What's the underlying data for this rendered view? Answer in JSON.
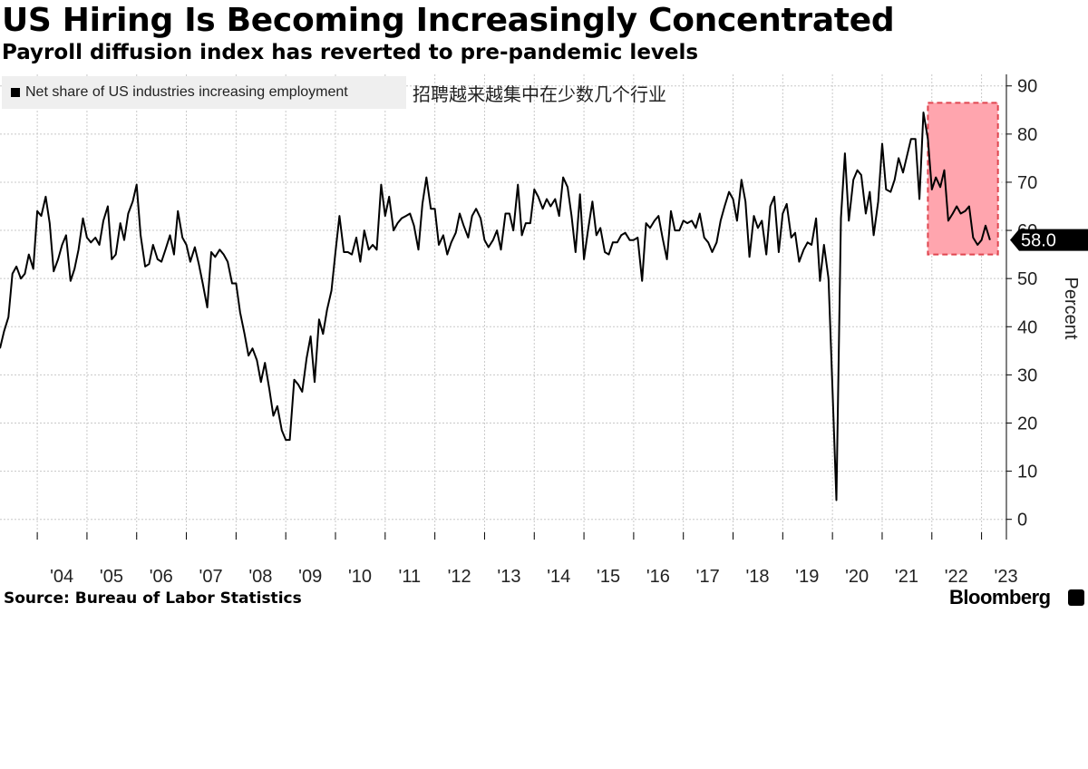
{
  "header": {
    "title": "US Hiring Is Becoming Increasingly Concentrated",
    "subtitle": "Payroll diffusion index has reverted to pre-pandemic levels"
  },
  "annotation": "招聘越来越集中在少数几个行业",
  "footer": {
    "source": "Source: Bureau of Labor Statistics",
    "brand": "Bloomberg"
  },
  "colors": {
    "line": "#000000",
    "highlight_fill": "#ffa5ae",
    "highlight_border": "#e0454f",
    "grid": "#c8c8c8",
    "legend_bg": "#efefef",
    "last_value_bg": "#000000"
  },
  "chart_data": {
    "type": "line",
    "title": "US Hiring Is Becoming Increasingly Concentrated",
    "subtitle": "Payroll diffusion index has reverted to pre-pandemic levels",
    "ylabel": "Percent",
    "ylim": [
      -4.2,
      92.4
    ],
    "yticks": [
      0,
      10,
      20,
      30,
      40,
      50,
      60,
      70,
      80,
      90
    ],
    "xlim": [
      2003.25,
      2023.5
    ],
    "xticks": [
      {
        "label": "'04",
        "x": 2004
      },
      {
        "label": "'05",
        "x": 2005
      },
      {
        "label": "'06",
        "x": 2006
      },
      {
        "label": "'07",
        "x": 2007
      },
      {
        "label": "'08",
        "x": 2008
      },
      {
        "label": "'09",
        "x": 2009
      },
      {
        "label": "'10",
        "x": 2010
      },
      {
        "label": "'11",
        "x": 2011
      },
      {
        "label": "'12",
        "x": 2012
      },
      {
        "label": "'13",
        "x": 2013
      },
      {
        "label": "'14",
        "x": 2014
      },
      {
        "label": "'15",
        "x": 2015
      },
      {
        "label": "'16",
        "x": 2016
      },
      {
        "label": "'17",
        "x": 2017
      },
      {
        "label": "'18",
        "x": 2018
      },
      {
        "label": "'19",
        "x": 2019
      },
      {
        "label": "'20",
        "x": 2020
      },
      {
        "label": "'21",
        "x": 2021
      },
      {
        "label": "'22",
        "x": 2022
      },
      {
        "label": "'23",
        "x": 2023
      }
    ],
    "grid": true,
    "legend": "top-left",
    "last_value_label": "58.0",
    "highlight_range": {
      "x": [
        2021.92,
        2023.33
      ],
      "y": [
        55.0,
        86.5
      ]
    },
    "series": [
      {
        "name": "Net share of US industries increasing employment",
        "values": [
          [
            2003.25,
            35.5
          ],
          [
            2003.33,
            39.0
          ],
          [
            2003.42,
            42.0
          ],
          [
            2003.5,
            51.0
          ],
          [
            2003.58,
            52.5
          ],
          [
            2003.67,
            50.0
          ],
          [
            2003.75,
            51.0
          ],
          [
            2003.83,
            55.0
          ],
          [
            2003.92,
            52.0
          ],
          [
            2004.0,
            64.0
          ],
          [
            2004.08,
            63.0
          ],
          [
            2004.17,
            67.0
          ],
          [
            2004.25,
            61.5
          ],
          [
            2004.33,
            51.5
          ],
          [
            2004.42,
            54.0
          ],
          [
            2004.5,
            57.0
          ],
          [
            2004.58,
            59.0
          ],
          [
            2004.67,
            49.5
          ],
          [
            2004.75,
            52.0
          ],
          [
            2004.83,
            56.0
          ],
          [
            2004.92,
            62.5
          ],
          [
            2005.0,
            58.5
          ],
          [
            2005.08,
            57.5
          ],
          [
            2005.17,
            58.5
          ],
          [
            2005.25,
            57.0
          ],
          [
            2005.33,
            62.0
          ],
          [
            2005.42,
            65.0
          ],
          [
            2005.5,
            54.0
          ],
          [
            2005.58,
            55.0
          ],
          [
            2005.67,
            61.5
          ],
          [
            2005.75,
            58.0
          ],
          [
            2005.83,
            63.5
          ],
          [
            2005.92,
            66.0
          ],
          [
            2006.0,
            69.5
          ],
          [
            2006.08,
            59.0
          ],
          [
            2006.17,
            52.5
          ],
          [
            2006.25,
            53.0
          ],
          [
            2006.33,
            57.0
          ],
          [
            2006.42,
            54.0
          ],
          [
            2006.5,
            53.5
          ],
          [
            2006.58,
            56.0
          ],
          [
            2006.67,
            59.0
          ],
          [
            2006.75,
            55.0
          ],
          [
            2006.83,
            64.0
          ],
          [
            2006.92,
            58.5
          ],
          [
            2007.0,
            57.0
          ],
          [
            2007.08,
            53.5
          ],
          [
            2007.17,
            56.5
          ],
          [
            2007.25,
            53.0
          ],
          [
            2007.33,
            49.0
          ],
          [
            2007.42,
            44.0
          ],
          [
            2007.5,
            55.5
          ],
          [
            2007.58,
            54.5
          ],
          [
            2007.67,
            56.0
          ],
          [
            2007.75,
            55.0
          ],
          [
            2007.83,
            53.5
          ],
          [
            2007.92,
            49.0
          ],
          [
            2008.0,
            49.0
          ],
          [
            2008.08,
            43.0
          ],
          [
            2008.17,
            38.5
          ],
          [
            2008.25,
            34.0
          ],
          [
            2008.33,
            35.5
          ],
          [
            2008.42,
            33.0
          ],
          [
            2008.5,
            28.5
          ],
          [
            2008.58,
            32.5
          ],
          [
            2008.67,
            27.0
          ],
          [
            2008.75,
            21.5
          ],
          [
            2008.83,
            23.5
          ],
          [
            2008.92,
            18.5
          ],
          [
            2009.0,
            16.5
          ],
          [
            2009.08,
            16.5
          ],
          [
            2009.17,
            29.0
          ],
          [
            2009.25,
            28.0
          ],
          [
            2009.33,
            26.5
          ],
          [
            2009.42,
            33.5
          ],
          [
            2009.5,
            38.0
          ],
          [
            2009.58,
            28.5
          ],
          [
            2009.67,
            41.5
          ],
          [
            2009.75,
            38.5
          ],
          [
            2009.83,
            43.5
          ],
          [
            2009.92,
            47.5
          ],
          [
            2010.0,
            55.5
          ],
          [
            2010.08,
            63.0
          ],
          [
            2010.17,
            55.5
          ],
          [
            2010.25,
            55.5
          ],
          [
            2010.33,
            55.0
          ],
          [
            2010.42,
            58.5
          ],
          [
            2010.5,
            53.5
          ],
          [
            2010.58,
            60.0
          ],
          [
            2010.67,
            56.0
          ],
          [
            2010.75,
            57.0
          ],
          [
            2010.83,
            56.0
          ],
          [
            2010.92,
            69.5
          ],
          [
            2011.0,
            63.0
          ],
          [
            2011.08,
            67.0
          ],
          [
            2011.17,
            60.0
          ],
          [
            2011.25,
            61.5
          ],
          [
            2011.33,
            62.5
          ],
          [
            2011.42,
            63.0
          ],
          [
            2011.5,
            63.5
          ],
          [
            2011.58,
            61.0
          ],
          [
            2011.67,
            56.0
          ],
          [
            2011.75,
            65.5
          ],
          [
            2011.83,
            71.0
          ],
          [
            2011.92,
            64.5
          ],
          [
            2012.0,
            64.5
          ],
          [
            2012.08,
            57.0
          ],
          [
            2012.17,
            59.0
          ],
          [
            2012.25,
            55.0
          ],
          [
            2012.33,
            57.5
          ],
          [
            2012.42,
            59.5
          ],
          [
            2012.5,
            63.5
          ],
          [
            2012.58,
            61.0
          ],
          [
            2012.67,
            58.5
          ],
          [
            2012.75,
            63.0
          ],
          [
            2012.83,
            64.5
          ],
          [
            2012.92,
            62.5
          ],
          [
            2013.0,
            58.0
          ],
          [
            2013.08,
            56.5
          ],
          [
            2013.17,
            58.0
          ],
          [
            2013.25,
            60.0
          ],
          [
            2013.33,
            56.0
          ],
          [
            2013.42,
            63.5
          ],
          [
            2013.5,
            63.5
          ],
          [
            2013.58,
            60.0
          ],
          [
            2013.67,
            69.5
          ],
          [
            2013.75,
            59.0
          ],
          [
            2013.83,
            61.5
          ],
          [
            2013.92,
            61.5
          ],
          [
            2014.0,
            68.5
          ],
          [
            2014.08,
            67.0
          ],
          [
            2014.17,
            64.5
          ],
          [
            2014.25,
            66.5
          ],
          [
            2014.33,
            65.0
          ],
          [
            2014.42,
            66.5
          ],
          [
            2014.5,
            63.0
          ],
          [
            2014.58,
            71.0
          ],
          [
            2014.67,
            69.0
          ],
          [
            2014.75,
            63.0
          ],
          [
            2014.83,
            55.5
          ],
          [
            2014.92,
            67.5
          ],
          [
            2015.0,
            54.0
          ],
          [
            2015.08,
            60.0
          ],
          [
            2015.17,
            66.0
          ],
          [
            2015.25,
            59.0
          ],
          [
            2015.33,
            60.5
          ],
          [
            2015.42,
            55.5
          ],
          [
            2015.5,
            55.0
          ],
          [
            2015.58,
            57.5
          ],
          [
            2015.67,
            57.5
          ],
          [
            2015.75,
            59.0
          ],
          [
            2015.83,
            59.5
          ],
          [
            2015.92,
            58.0
          ],
          [
            2016.0,
            58.0
          ],
          [
            2016.08,
            58.5
          ],
          [
            2016.17,
            49.5
          ],
          [
            2016.25,
            61.5
          ],
          [
            2016.33,
            60.5
          ],
          [
            2016.42,
            62.0
          ],
          [
            2016.5,
            63.0
          ],
          [
            2016.58,
            58.5
          ],
          [
            2016.67,
            54.0
          ],
          [
            2016.75,
            64.0
          ],
          [
            2016.83,
            60.0
          ],
          [
            2016.92,
            60.0
          ],
          [
            2017.0,
            62.0
          ],
          [
            2017.08,
            61.5
          ],
          [
            2017.17,
            62.0
          ],
          [
            2017.25,
            60.5
          ],
          [
            2017.33,
            63.5
          ],
          [
            2017.42,
            58.5
          ],
          [
            2017.5,
            57.5
          ],
          [
            2017.58,
            55.5
          ],
          [
            2017.67,
            57.5
          ],
          [
            2017.75,
            62.0
          ],
          [
            2017.83,
            65.0
          ],
          [
            2017.92,
            68.0
          ],
          [
            2018.0,
            66.5
          ],
          [
            2018.08,
            62.0
          ],
          [
            2018.17,
            70.5
          ],
          [
            2018.25,
            66.0
          ],
          [
            2018.33,
            54.5
          ],
          [
            2018.42,
            63.0
          ],
          [
            2018.5,
            60.5
          ],
          [
            2018.58,
            62.0
          ],
          [
            2018.67,
            55.0
          ],
          [
            2018.75,
            65.0
          ],
          [
            2018.83,
            67.0
          ],
          [
            2018.92,
            55.5
          ],
          [
            2019.0,
            63.5
          ],
          [
            2019.08,
            65.5
          ],
          [
            2019.17,
            58.5
          ],
          [
            2019.25,
            59.5
          ],
          [
            2019.33,
            53.5
          ],
          [
            2019.42,
            56.0
          ],
          [
            2019.5,
            57.5
          ],
          [
            2019.58,
            57.0
          ],
          [
            2019.67,
            62.5
          ],
          [
            2019.75,
            49.5
          ],
          [
            2019.83,
            57.0
          ],
          [
            2019.92,
            50.0
          ],
          [
            2020.0,
            27.5
          ],
          [
            2020.08,
            4.0
          ],
          [
            2020.17,
            62.5
          ],
          [
            2020.25,
            76.0
          ],
          [
            2020.33,
            62.0
          ],
          [
            2020.42,
            70.5
          ],
          [
            2020.5,
            72.5
          ],
          [
            2020.58,
            71.5
          ],
          [
            2020.67,
            63.5
          ],
          [
            2020.75,
            68.0
          ],
          [
            2020.83,
            59.0
          ],
          [
            2020.92,
            66.0
          ],
          [
            2021.0,
            78.0
          ],
          [
            2021.08,
            68.5
          ],
          [
            2021.17,
            68.0
          ],
          [
            2021.25,
            70.5
          ],
          [
            2021.33,
            75.0
          ],
          [
            2021.42,
            72.0
          ],
          [
            2021.5,
            75.5
          ],
          [
            2021.58,
            79.0
          ],
          [
            2021.67,
            79.0
          ],
          [
            2021.75,
            66.5
          ],
          [
            2021.83,
            84.5
          ],
          [
            2021.92,
            79.0
          ],
          [
            2022.0,
            68.5
          ],
          [
            2022.08,
            71.0
          ],
          [
            2022.17,
            69.0
          ],
          [
            2022.25,
            72.5
          ],
          [
            2022.33,
            62.0
          ],
          [
            2022.42,
            63.5
          ],
          [
            2022.5,
            65.0
          ],
          [
            2022.58,
            63.5
          ],
          [
            2022.67,
            64.0
          ],
          [
            2022.75,
            65.0
          ],
          [
            2022.83,
            58.5
          ],
          [
            2022.92,
            57.0
          ],
          [
            2023.0,
            58.0
          ],
          [
            2023.08,
            61.0
          ],
          [
            2023.17,
            58.0
          ]
        ]
      }
    ]
  }
}
